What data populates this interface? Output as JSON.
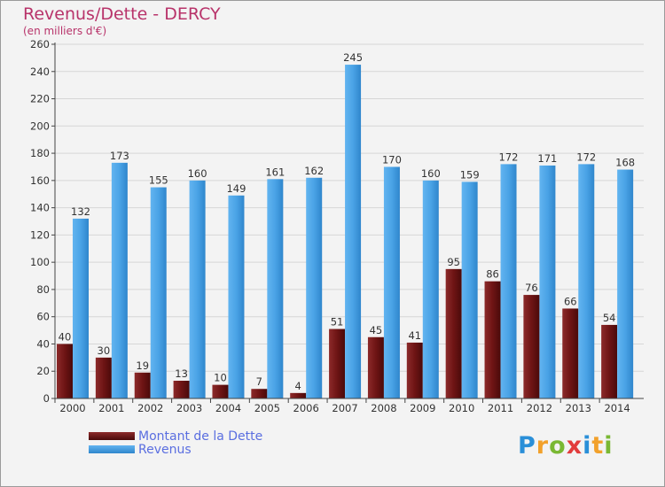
{
  "header": {
    "title": "Revenus/Dette - DERCY",
    "subtitle": "(en milliers d'€)"
  },
  "legend": {
    "items": [
      {
        "label": "Montant de la Dette",
        "color": "#7a1c1c"
      },
      {
        "label": "Revenus",
        "color": "#4aa3e6"
      }
    ]
  },
  "logo": {
    "letters": [
      {
        "char": "P",
        "color": "#2a8fd8"
      },
      {
        "char": "r",
        "color": "#f2a12b"
      },
      {
        "char": "o",
        "color": "#7ab833"
      },
      {
        "char": "x",
        "color": "#e23c3c"
      },
      {
        "char": "i",
        "color": "#2a8fd8"
      },
      {
        "char": "t",
        "color": "#f2a12b"
      },
      {
        "char": "i",
        "color": "#7ab833"
      }
    ]
  },
  "chart_data": {
    "type": "bar",
    "title": "Revenus/Dette - DERCY",
    "ylabel": "(en milliers d'€)",
    "xlabel": "",
    "ylim": [
      0,
      260
    ],
    "ytick_step": 20,
    "grid": true,
    "legend_position": "bottom-left",
    "categories": [
      "2000",
      "2001",
      "2002",
      "2003",
      "2004",
      "2005",
      "2006",
      "2007",
      "2008",
      "2009",
      "2010",
      "2011",
      "2012",
      "2013",
      "2014"
    ],
    "series": [
      {
        "name": "Montant de la Dette",
        "color": "#7a1c1c",
        "values": [
          40,
          30,
          19,
          13,
          10,
          7,
          4,
          51,
          45,
          41,
          95,
          86,
          76,
          66,
          54
        ]
      },
      {
        "name": "Revenus",
        "color": "#4aa3e6",
        "values": [
          132,
          173,
          155,
          160,
          149,
          161,
          162,
          245,
          170,
          160,
          159,
          172,
          171,
          172,
          168
        ]
      }
    ]
  }
}
